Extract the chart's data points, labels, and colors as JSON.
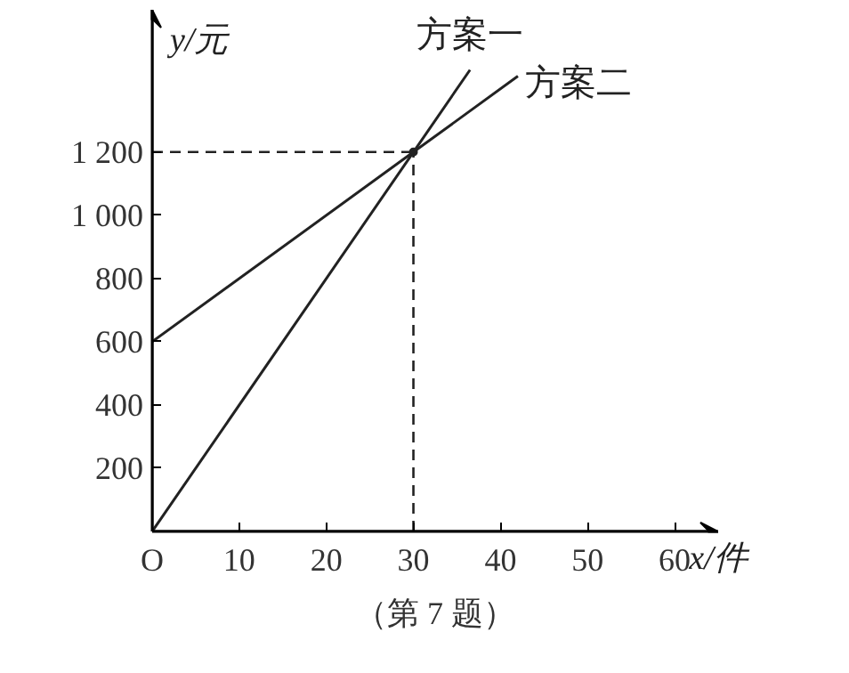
{
  "chart_data": {
    "type": "line",
    "xlabel": "x/件",
    "ylabel": "y/元",
    "xlim": [
      0,
      65
    ],
    "ylim": [
      0,
      1650
    ],
    "xticks": [
      {
        "value": 0,
        "label": "O"
      },
      10,
      20,
      30,
      40,
      50,
      60
    ],
    "yticks": [
      200,
      400,
      600,
      800,
      {
        "value": 1000,
        "label": "1 000"
      },
      {
        "value": 1200,
        "label": "1 200"
      }
    ],
    "series": [
      {
        "name": "方案一",
        "color": "#222222",
        "x": [
          0,
          30,
          36.5
        ],
        "values": [
          0,
          1200,
          1460
        ]
      },
      {
        "name": "方案二",
        "color": "#222222",
        "x": [
          0,
          30,
          42
        ],
        "values": [
          600,
          1200,
          1440
        ]
      }
    ],
    "ref_lines": [
      {
        "axis": "x",
        "value": 30,
        "line_style": "dashed"
      },
      {
        "axis": "y",
        "value": 1200,
        "line_style": "dashed"
      }
    ],
    "annotations": [
      "（第 7 题）"
    ],
    "grid": false,
    "marker": "none",
    "line_style": "solid"
  }
}
